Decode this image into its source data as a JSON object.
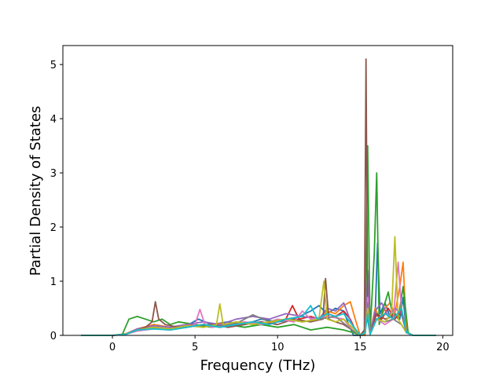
{
  "chart_data": {
    "type": "line",
    "title": "",
    "xlabel": "Frequency (THz)",
    "ylabel": "Partial Density of States",
    "xlim": [
      -3.0,
      20.6
    ],
    "ylim": [
      0,
      5.35
    ],
    "xticks": [
      0,
      5,
      10,
      15,
      20
    ],
    "yticks": [
      0,
      1,
      2,
      3,
      4,
      5
    ],
    "grid": false,
    "legend": "none",
    "colors": [
      "#1f77b4",
      "#ff7f0e",
      "#2ca02c",
      "#d62728",
      "#9467bd",
      "#8c564b",
      "#e377c2",
      "#7f7f7f",
      "#bcbd22",
      "#17becf"
    ],
    "series": [
      {
        "x": [
          -1.9,
          0.0,
          0.8,
          1.5,
          2.5,
          3.5,
          4.5,
          5.2,
          6.0,
          7.0,
          8.0,
          9.0,
          10.0,
          11.0,
          12.0,
          12.5,
          13.0,
          13.5,
          14.0,
          14.3,
          14.6,
          15.0,
          15.3,
          15.45,
          15.6,
          15.9,
          16.05,
          16.2,
          16.5,
          16.8,
          17.1,
          17.4,
          17.6,
          17.8,
          18.2,
          19.6
        ],
        "values": [
          0,
          0,
          0.02,
          0.1,
          0.15,
          0.12,
          0.18,
          0.3,
          0.2,
          0.25,
          0.2,
          0.3,
          0.25,
          0.3,
          0.45,
          0.55,
          0.4,
          0.5,
          0.45,
          0.2,
          0,
          0,
          0.02,
          0.8,
          0.02,
          0.3,
          1.7,
          0.4,
          0.6,
          0.35,
          0.4,
          0.3,
          0.7,
          0.05,
          0,
          0
        ]
      },
      {
        "x": [
          -1.9,
          0.0,
          0.8,
          1.5,
          2.5,
          3.5,
          4.5,
          5.5,
          6.5,
          7.5,
          8.5,
          9.5,
          10.5,
          11.5,
          12.5,
          13.0,
          13.5,
          14.0,
          14.4,
          14.7,
          15.0,
          15.3,
          15.45,
          15.6,
          15.9,
          16.2,
          16.5,
          16.8,
          17.1,
          17.4,
          17.6,
          17.8,
          18.2,
          19.6
        ],
        "values": [
          0,
          0,
          0.03,
          0.12,
          0.2,
          0.15,
          0.2,
          0.18,
          0.22,
          0.2,
          0.25,
          0.22,
          0.3,
          0.35,
          0.3,
          0.45,
          0.4,
          0.55,
          0.62,
          0.3,
          0,
          0,
          1.0,
          0.02,
          0.5,
          0.3,
          0.5,
          0.6,
          0.4,
          0.9,
          1.35,
          0.05,
          0,
          0
        ]
      },
      {
        "x": [
          -1.9,
          0.0,
          0.6,
          1.0,
          1.5,
          2.0,
          2.5,
          3.0,
          3.5,
          4.0,
          5.0,
          6.0,
          7.0,
          8.0,
          9.0,
          10.0,
          11.0,
          12.0,
          13.0,
          14.0,
          14.6,
          15.0,
          15.3,
          15.45,
          15.6,
          15.85,
          16.0,
          16.15,
          16.4,
          16.7,
          17.0,
          17.1,
          17.3,
          17.6,
          17.9,
          18.2,
          19.6
        ],
        "values": [
          0,
          0,
          0.02,
          0.3,
          0.35,
          0.3,
          0.25,
          0.3,
          0.2,
          0.25,
          0.2,
          0.15,
          0.2,
          0.15,
          0.2,
          0.15,
          0.2,
          0.1,
          0.15,
          0.1,
          0.05,
          0,
          0.1,
          3.5,
          0.05,
          1.5,
          3.0,
          0.2,
          0.5,
          0.8,
          0.3,
          0.4,
          0.3,
          0.9,
          0.05,
          0,
          0
        ]
      },
      {
        "x": [
          -1.9,
          0.0,
          0.8,
          1.5,
          2.5,
          3.5,
          4.5,
          5.5,
          6.5,
          7.5,
          8.5,
          9.5,
          10.5,
          10.9,
          11.3,
          12.0,
          12.5,
          13.0,
          13.5,
          14.0,
          14.4,
          14.7,
          15.0,
          15.3,
          15.45,
          15.6,
          15.9,
          16.3,
          16.7,
          17.1,
          17.5,
          17.8,
          18.2,
          19.6
        ],
        "values": [
          0,
          0,
          0.02,
          0.1,
          0.15,
          0.12,
          0.15,
          0.2,
          0.15,
          0.2,
          0.25,
          0.2,
          0.3,
          0.55,
          0.3,
          0.35,
          0.3,
          0.4,
          0.35,
          0.45,
          0.3,
          0.1,
          0,
          0.05,
          0.9,
          0.02,
          0.4,
          0.3,
          0.5,
          0.3,
          0.45,
          0.05,
          0,
          0
        ]
      },
      {
        "x": [
          -1.9,
          0.0,
          0.8,
          1.5,
          2.5,
          3.5,
          4.5,
          5.5,
          6.5,
          7.5,
          8.5,
          9.5,
          10.5,
          11.5,
          12.5,
          13.0,
          13.5,
          14.0,
          14.5,
          15.0,
          15.3,
          15.45,
          15.6,
          15.9,
          16.3,
          16.7,
          17.1,
          17.5,
          17.8,
          18.2,
          19.6
        ],
        "values": [
          0,
          0,
          0.02,
          0.12,
          0.18,
          0.15,
          0.2,
          0.25,
          0.2,
          0.3,
          0.35,
          0.3,
          0.4,
          0.35,
          0.3,
          0.5,
          0.45,
          0.6,
          0.2,
          0,
          0.05,
          1.2,
          0.02,
          0.45,
          0.6,
          0.35,
          0.5,
          0.4,
          0.05,
          0,
          0
        ]
      },
      {
        "x": [
          -1.9,
          0.0,
          0.8,
          1.5,
          2.0,
          2.4,
          2.6,
          2.8,
          3.2,
          4.0,
          5.0,
          6.0,
          7.0,
          8.0,
          9.0,
          10.0,
          11.0,
          12.0,
          12.75,
          12.9,
          13.1,
          13.5,
          14.0,
          14.5,
          15.0,
          15.25,
          15.35,
          15.45,
          15.6,
          16.0,
          16.5,
          17.0,
          17.5,
          17.8,
          18.2,
          19.6
        ],
        "values": [
          0,
          0,
          0.02,
          0.1,
          0.15,
          0.25,
          0.62,
          0.3,
          0.2,
          0.15,
          0.18,
          0.2,
          0.15,
          0.2,
          0.25,
          0.2,
          0.3,
          0.25,
          0.3,
          1.05,
          0.3,
          0.25,
          0.2,
          0.1,
          0,
          0.1,
          5.1,
          0.3,
          0.02,
          0.4,
          0.3,
          0.35,
          0.4,
          0.05,
          0,
          0
        ]
      },
      {
        "x": [
          -1.9,
          0.0,
          0.8,
          1.5,
          2.5,
          3.5,
          4.5,
          5.0,
          5.3,
          5.6,
          6.0,
          7.0,
          8.0,
          9.0,
          10.0,
          11.0,
          11.5,
          12.0,
          13.0,
          14.0,
          14.5,
          15.0,
          15.3,
          15.45,
          15.6,
          16.0,
          16.5,
          17.0,
          17.3,
          17.5,
          17.8,
          18.2,
          19.6
        ],
        "values": [
          0,
          0,
          0.02,
          0.08,
          0.12,
          0.1,
          0.15,
          0.2,
          0.48,
          0.2,
          0.15,
          0.2,
          0.25,
          0.2,
          0.3,
          0.25,
          0.45,
          0.3,
          0.35,
          0.3,
          0.1,
          0,
          0.05,
          0.7,
          0.02,
          0.3,
          0.2,
          0.3,
          1.35,
          0.5,
          0.05,
          0,
          0
        ]
      },
      {
        "x": [
          -1.9,
          0.0,
          0.8,
          1.5,
          2.5,
          3.5,
          4.5,
          5.5,
          6.5,
          7.5,
          8.5,
          9.5,
          10.5,
          11.5,
          12.5,
          13.5,
          14.5,
          15.0,
          15.3,
          15.45,
          15.6,
          16.0,
          16.5,
          17.0,
          17.5,
          17.8,
          18.2,
          19.6
        ],
        "values": [
          0,
          0,
          0.02,
          0.1,
          0.15,
          0.12,
          0.15,
          0.2,
          0.18,
          0.22,
          0.38,
          0.25,
          0.3,
          0.25,
          0.3,
          0.35,
          0.1,
          0,
          0.05,
          0.6,
          0.02,
          0.3,
          0.25,
          0.3,
          0.2,
          0.05,
          0,
          0
        ]
      },
      {
        "x": [
          -1.9,
          0.0,
          0.8,
          1.5,
          2.5,
          3.5,
          4.5,
          5.5,
          6.3,
          6.5,
          6.7,
          7.5,
          8.5,
          9.5,
          10.5,
          11.5,
          12.5,
          12.8,
          13.0,
          13.5,
          14.0,
          14.5,
          15.0,
          15.3,
          15.45,
          15.6,
          16.0,
          16.5,
          16.9,
          17.1,
          17.3,
          17.8,
          18.2,
          19.6
        ],
        "values": [
          0,
          0,
          0.02,
          0.1,
          0.15,
          0.12,
          0.18,
          0.15,
          0.2,
          0.58,
          0.2,
          0.25,
          0.2,
          0.25,
          0.3,
          0.25,
          0.3,
          1.0,
          0.3,
          0.25,
          0.3,
          0.15,
          0,
          0.05,
          0.5,
          0.02,
          0.3,
          0.25,
          0.4,
          1.82,
          0.3,
          0.05,
          0,
          0
        ]
      },
      {
        "x": [
          -1.9,
          0.0,
          0.8,
          1.5,
          2.5,
          3.5,
          4.5,
          5.5,
          6.5,
          7.5,
          8.5,
          9.5,
          10.5,
          11.5,
          12.0,
          12.4,
          13.0,
          13.5,
          14.0,
          14.5,
          15.0,
          15.3,
          15.45,
          15.6,
          16.0,
          16.5,
          17.0,
          17.5,
          17.8,
          18.2,
          19.6
        ],
        "values": [
          0,
          0,
          0.02,
          0.1,
          0.12,
          0.1,
          0.15,
          0.2,
          0.15,
          0.2,
          0.25,
          0.2,
          0.3,
          0.35,
          0.55,
          0.3,
          0.4,
          0.35,
          0.4,
          0.2,
          0,
          0.05,
          0.4,
          0.02,
          0.3,
          0.4,
          0.3,
          0.5,
          0.05,
          0,
          0
        ]
      }
    ]
  }
}
